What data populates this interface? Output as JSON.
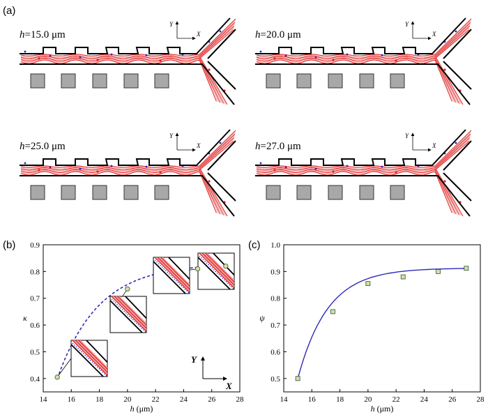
{
  "figure": {
    "panel_a_label": "(a)",
    "panel_b_label": "(b)",
    "panel_c_label": "(c)",
    "axis_x_letter": "X",
    "axis_y_letter": "Y",
    "channel_panels": [
      {
        "h_prefix": "h",
        "h_value": "=15.0 μm"
      },
      {
        "h_prefix": "h",
        "h_value": "=20.0 μm"
      },
      {
        "h_prefix": "h",
        "h_value": "=25.0 μm"
      },
      {
        "h_prefix": "h",
        "h_value": "=27.0 μm"
      }
    ],
    "colors": {
      "streamline_red": "#e02020",
      "streamline_light": "#f0a0a0",
      "particle_blue": "#1f1fc8",
      "obstacle_gray": "#a8a8a8",
      "curve_blue": "#2a2ab8",
      "marker_green": "#c8e6a0"
    }
  },
  "chart_data": [
    {
      "type": "scatter",
      "panel": "b",
      "xlabel_italic": "h",
      "xlabel_unit": " (μm)",
      "ylabel": "κ",
      "xlim": [
        14,
        28
      ],
      "ylim": [
        0.35,
        0.9
      ],
      "xticks": [
        14,
        16,
        18,
        20,
        22,
        24,
        26,
        28
      ],
      "yticks": [
        0.4,
        0.5,
        0.6,
        0.7,
        0.8,
        0.9
      ],
      "x": [
        15,
        20,
        25,
        27
      ],
      "y": [
        0.405,
        0.735,
        0.81,
        0.82
      ],
      "fit_line": "dashed",
      "grid": false
    },
    {
      "type": "scatter",
      "panel": "c",
      "xlabel_italic": "h",
      "xlabel_unit": " (μm)",
      "ylabel": "ψ",
      "xlim": [
        14,
        28
      ],
      "ylim": [
        0.45,
        1.0
      ],
      "xticks": [
        14,
        16,
        18,
        20,
        22,
        24,
        26,
        28
      ],
      "yticks": [
        0.5,
        0.6,
        0.7,
        0.8,
        0.9,
        1.0
      ],
      "x": [
        15,
        17.5,
        20,
        22.5,
        25,
        27
      ],
      "y": [
        0.5,
        0.75,
        0.855,
        0.88,
        0.9,
        0.912
      ],
      "fit_line": "solid",
      "grid": false
    }
  ]
}
